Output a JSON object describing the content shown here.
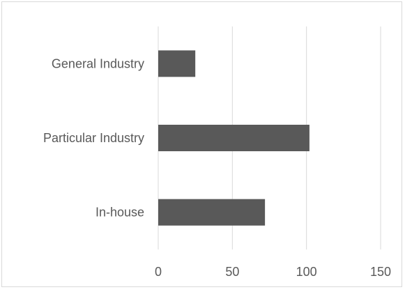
{
  "chart_data": {
    "type": "bar",
    "orientation": "horizontal",
    "categories": [
      "General Industry",
      "Particular Industry",
      "In-house"
    ],
    "values": [
      25,
      102,
      72
    ],
    "xlim": [
      0,
      150
    ],
    "xticks": [
      0,
      50,
      100,
      150
    ],
    "grid": true,
    "colors": {
      "bar": "#595959",
      "grid": "#d9d9d9",
      "text": "#595959"
    }
  }
}
